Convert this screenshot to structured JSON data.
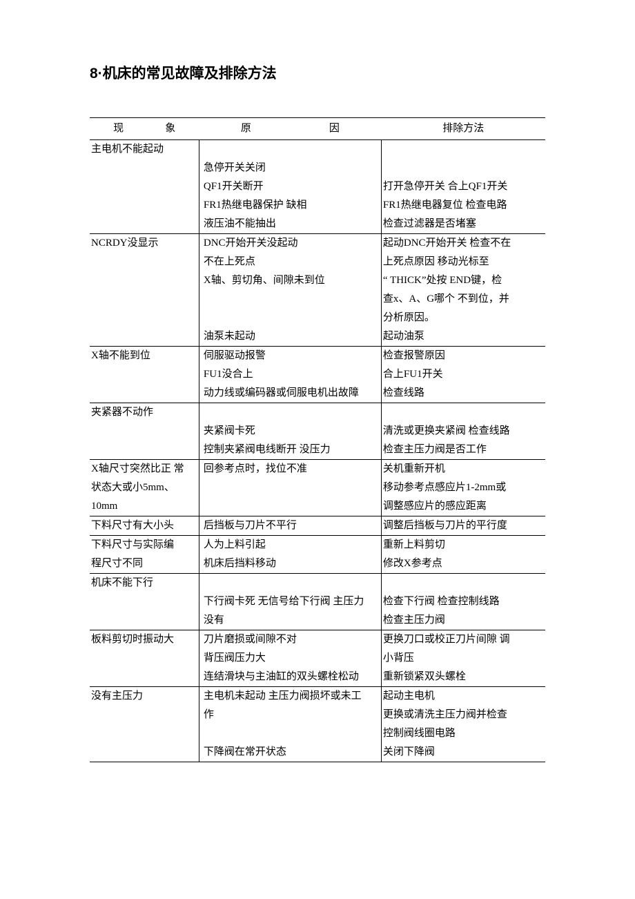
{
  "title": "8·机床的常见故障及排除方法",
  "headers": {
    "c1a": "现",
    "c1b": "象",
    "c2a": "原",
    "c2b": "因",
    "c3": "排除方法"
  },
  "rows": [
    {
      "c1": [
        "主电机不能起动"
      ],
      "c2": [
        "",
        "急停开关关闭",
        "QF1开关断开",
        "FR1热继电器保护  缺相",
        "液压油不能抽出"
      ],
      "c3": [
        "",
        "",
        "打开急停开关  合上QF1开关",
        "FR1热继电器复位  检查电路",
        "检查过滤器是否堵塞"
      ]
    },
    {
      "c1": [
        "NCRDY没显示"
      ],
      "c2": [
        "DNC开始开关没起动",
        "不在上死点",
        "X轴、剪切角、间隙未到位",
        "",
        "",
        "油泵未起动"
      ],
      "c3": [
        "起动DNC开始开关  检查不在",
        "上死点原因  移动光标至",
        "“  THICK”处按  END键，检",
        "查x、A、G哪个  不到位，并",
        "分析原因。",
        "起动油泵"
      ]
    },
    {
      "c1": [
        "X轴不能到位"
      ],
      "c2": [
        "伺服驱动报警",
        "FU1没合上",
        "动力线或编码器或伺服电机出故障"
      ],
      "c3": [
        "检查报警原因",
        "合上FU1开关",
        "检查线路"
      ]
    },
    {
      "c1": [
        "夹紧器不动作"
      ],
      "c2": [
        "",
        "夹紧阀卡死",
        "控制夹紧阀电线断开  没压力"
      ],
      "c3": [
        "",
        "清洗或更换夹紧阀  检查线路",
        "检查主压力阀是否工作"
      ]
    },
    {
      "c1": [
        "X轴尺寸突然比正  常",
        "状态大或小5mm、",
        "10mm"
      ],
      "c2": [
        "回参考点时，找位不准"
      ],
      "c3": [
        "关机重新开机",
        "移动参考点感应片1-2mm或",
        "调整感应片的感应距离"
      ]
    },
    {
      "c1": [
        "下料尺寸有大小头"
      ],
      "c2": [
        "后挡板与刀片不平行"
      ],
      "c3": [
        "调整后挡板与刀片的平行度"
      ]
    },
    {
      "c1": [
        "下料尺寸与实际编",
        "程尺寸不同"
      ],
      "c2": [
        "人为上料引起",
        "机床后挡料移动"
      ],
      "c3": [
        "重新上料剪切",
        "修改X参考点"
      ]
    },
    {
      "c1": [
        "机床不能下行"
      ],
      "c2": [
        "",
        "下行阀卡死  无信号给下行阀  主压力",
        "没有"
      ],
      "c3": [
        "",
        "检查下行阀  检查控制线路",
        "检查主压力阀"
      ]
    },
    {
      "c1": [
        "板料剪切时振动大"
      ],
      "c2": [
        "刀片磨损或间隙不对",
        "背压阀压力大",
        "连结滑块与主油缸的双头螺栓松动"
      ],
      "c3": [
        "更换刀口或校正刀片间隙  调",
        "小背压",
        "重新锁紧双头螺栓"
      ]
    },
    {
      "c1": [
        "没有主压力"
      ],
      "c2": [
        "主电机未起动  主压力阀损坏或未工",
        "作",
        "",
        "下降阀在常开状态"
      ],
      "c3": [
        "起动主电机",
        "更换或清洗主压力阀并检查",
        "控制阀线圈电路",
        "关闭下降阀"
      ]
    }
  ]
}
